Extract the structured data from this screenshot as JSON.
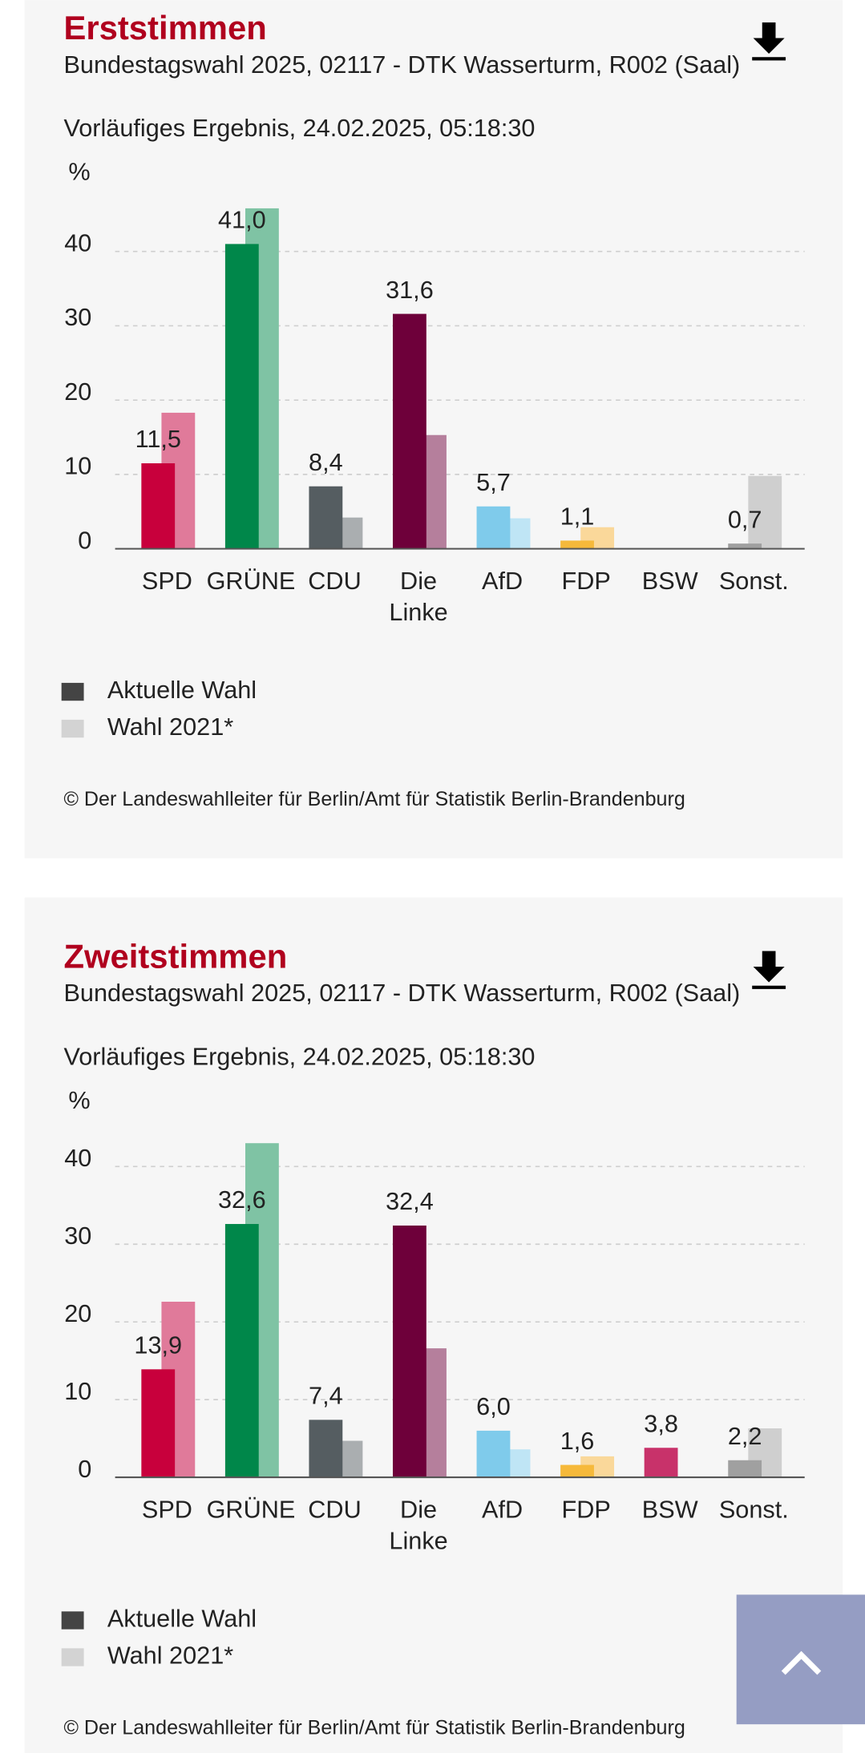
{
  "chart_data": [
    {
      "type": "bar",
      "title": "Erststimmen",
      "subtitle": "Bundestagswahl 2025, 02117 - DTK Wasserturm, R002 (Saal)",
      "note": "Vorläufiges Ergebnis, 24.02.2025, 05:18:30",
      "ylabel": "%",
      "categories": [
        "SPD",
        "GRÜNE",
        "CDU",
        "Die Linke",
        "AfD",
        "FDP",
        "BSW",
        "Sonst."
      ],
      "series": [
        {
          "name": "Aktuelle Wahl",
          "color": "#444444",
          "colors": [
            "#c8003c",
            "#00874a",
            "#555d61",
            "#6e003a",
            "#7fcbeb",
            "#f6b93b",
            "#c8326a",
            "#a0a0a0"
          ],
          "values": [
            11.5,
            41.0,
            8.4,
            31.6,
            5.7,
            1.1,
            null,
            0.7
          ],
          "value_labels": [
            "11,5",
            "41,0",
            "8,4",
            "31,6",
            "5,7",
            "1,1",
            null,
            "0,7"
          ]
        },
        {
          "name": "Wahl 2021*",
          "color": "#d3d3d3",
          "colors": [
            "#e07a9a",
            "#7fc3a4",
            "#aaaeb0",
            "#b57f9c",
            "#bfe5f5",
            "#fad89a",
            "#e399b4",
            "#cfcfcf"
          ],
          "values": [
            18.3,
            45.8,
            4.2,
            15.3,
            4.1,
            2.9,
            null,
            9.8
          ]
        }
      ],
      "ylim": [
        0,
        46
      ],
      "yticks": [
        0,
        10,
        20,
        30,
        40
      ],
      "grid": true,
      "source": "© Der Landeswahlleiter für Berlin/Amt für Statistik Berlin-Brandenburg"
    },
    {
      "type": "bar",
      "title": "Zweitstimmen",
      "subtitle": "Bundestagswahl 2025, 02117 - DTK Wasserturm, R002 (Saal)",
      "note": "Vorläufiges Ergebnis, 24.02.2025, 05:18:30",
      "ylabel": "%",
      "categories": [
        "SPD",
        "GRÜNE",
        "CDU",
        "Die Linke",
        "AfD",
        "FDP",
        "BSW",
        "Sonst."
      ],
      "series": [
        {
          "name": "Aktuelle Wahl",
          "color": "#444444",
          "colors": [
            "#c8003c",
            "#00874a",
            "#555d61",
            "#6e003a",
            "#7fcbeb",
            "#f6b93b",
            "#c8326a",
            "#a0a0a0"
          ],
          "values": [
            13.9,
            32.6,
            7.4,
            32.4,
            6.0,
            1.6,
            3.8,
            2.2
          ],
          "value_labels": [
            "13,9",
            "32,6",
            "7,4",
            "32,4",
            "6,0",
            "1,6",
            "3,8",
            "2,2"
          ]
        },
        {
          "name": "Wahl 2021*",
          "color": "#d3d3d3",
          "colors": [
            "#e07a9a",
            "#7fc3a4",
            "#aaaeb0",
            "#b57f9c",
            "#bfe5f5",
            "#fad89a",
            "#e399b4",
            "#cfcfcf"
          ],
          "values": [
            22.6,
            43.0,
            4.7,
            16.6,
            3.6,
            2.7,
            null,
            6.3
          ]
        }
      ],
      "ylim": [
        0,
        44
      ],
      "yticks": [
        0,
        10,
        20,
        30,
        40
      ],
      "grid": true,
      "source": "© Der Landeswahlleiter für Berlin/Amt für Statistik Berlin-Brandenburg"
    }
  ]
}
